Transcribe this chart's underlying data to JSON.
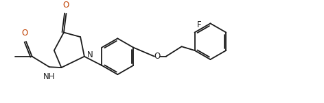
{
  "bg_color": "#ffffff",
  "line_color": "#1a1a1a",
  "figsize": [
    4.72,
    1.51
  ],
  "dpi": 100,
  "xlim": [
    0,
    10.5
  ],
  "ylim": [
    0,
    3.3
  ]
}
